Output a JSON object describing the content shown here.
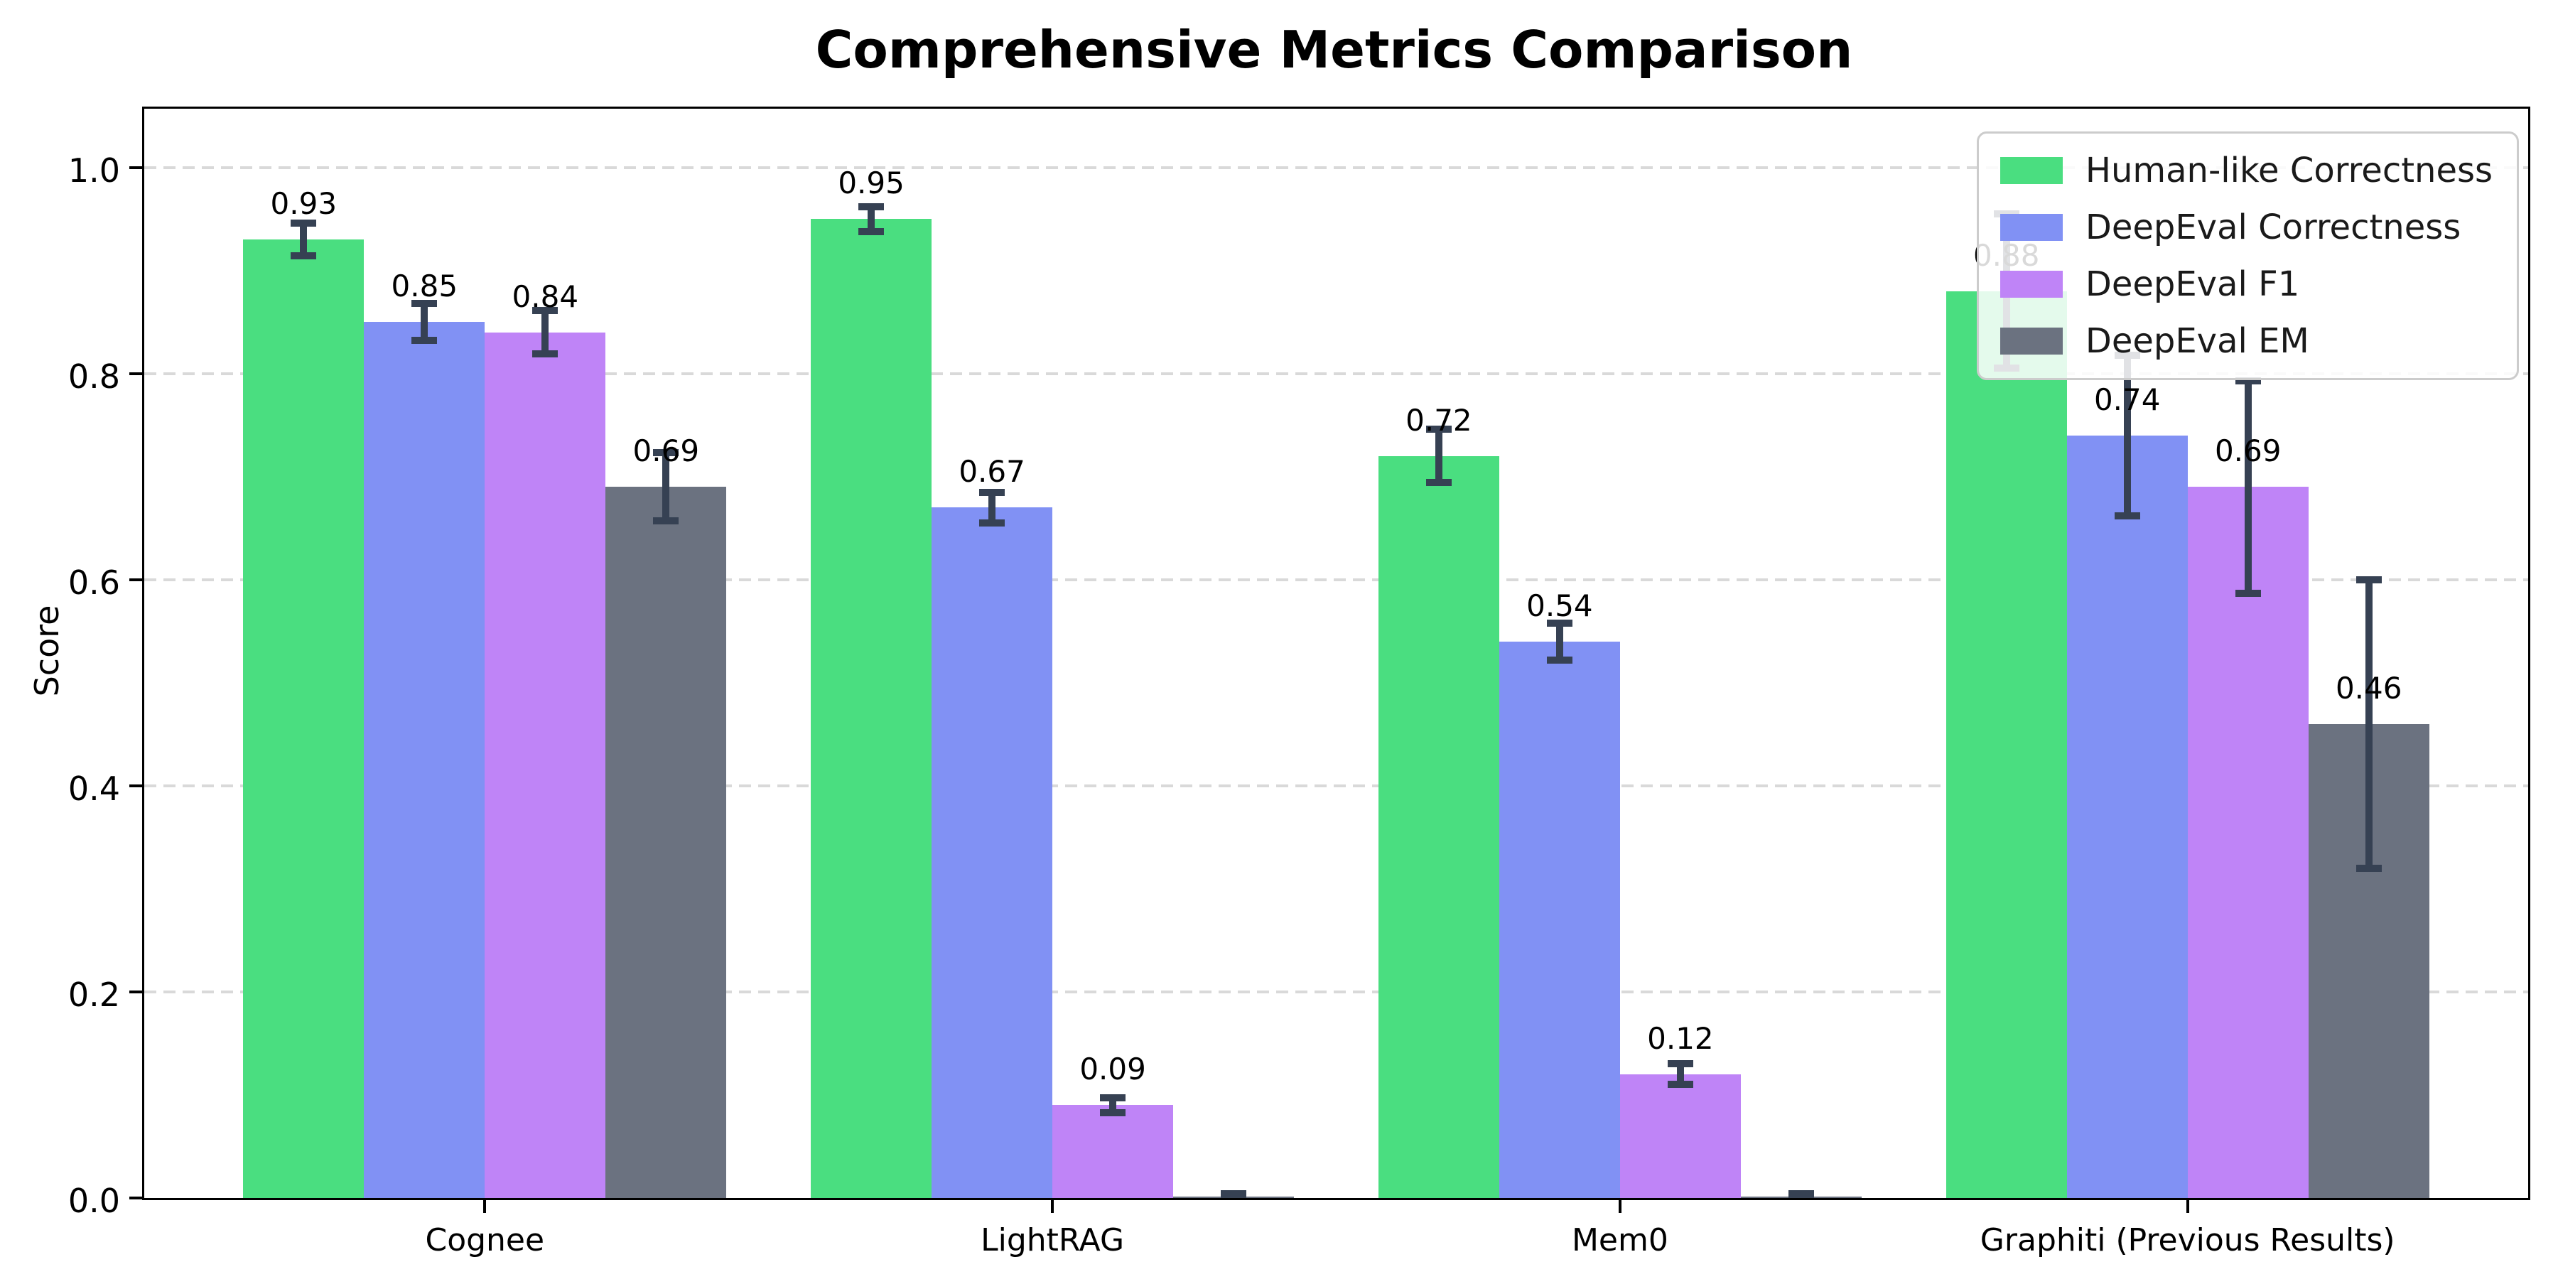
{
  "title": "Comprehensive Metrics Comparison",
  "axes": {
    "ylabel": "Score",
    "yticks": [
      "0.0",
      "0.2",
      "0.4",
      "0.6",
      "0.8",
      "1.0"
    ],
    "ytick_values": [
      0.0,
      0.2,
      0.4,
      0.6,
      0.8,
      1.0
    ]
  },
  "chart_data": {
    "type": "bar",
    "categories": [
      "Cognee",
      "LightRAG",
      "Mem0",
      "Graphiti (Previous Results)"
    ],
    "series": [
      {
        "name": "Human-like Correctness",
        "color": "#4ade80",
        "values": [
          0.93,
          0.95,
          0.72,
          0.88
        ],
        "errors": [
          0.016,
          0.012,
          0.026,
          0.075
        ],
        "labels": [
          "0.93",
          "0.95",
          "0.72",
          "0.88"
        ]
      },
      {
        "name": "DeepEval Correctness",
        "color": "#8191f4",
        "values": [
          0.85,
          0.67,
          0.54,
          0.74
        ],
        "errors": [
          0.018,
          0.015,
          0.018,
          0.078
        ],
        "labels": [
          "0.85",
          "0.67",
          "0.54",
          "0.74"
        ]
      },
      {
        "name": "DeepEval F1",
        "color": "#bf84f7",
        "values": [
          0.84,
          0.09,
          0.12,
          0.69
        ],
        "errors": [
          0.021,
          0.007,
          0.01,
          0.103
        ],
        "labels": [
          "0.84",
          "0.09",
          "0.12",
          "0.69"
        ]
      },
      {
        "name": "DeepEval EM",
        "color": "#6b7280",
        "values": [
          0.69,
          0.0,
          0.0,
          0.46
        ],
        "errors": [
          0.033,
          0.004,
          0.004,
          0.14
        ],
        "labels": [
          "0.69",
          "",
          "",
          "0.46"
        ]
      }
    ],
    "title": "Comprehensive Metrics Comparison",
    "xlabel": "",
    "ylabel": "Score",
    "ylim": [
      0,
      1.057
    ],
    "grid": "horizontal-dashed",
    "legend_position": "upper right"
  },
  "style": {
    "error_color": "#364153",
    "grid_color": "#d9d9d9",
    "spine_color": "#000000",
    "legend_border": "#cccccc",
    "background": "#ffffff"
  }
}
